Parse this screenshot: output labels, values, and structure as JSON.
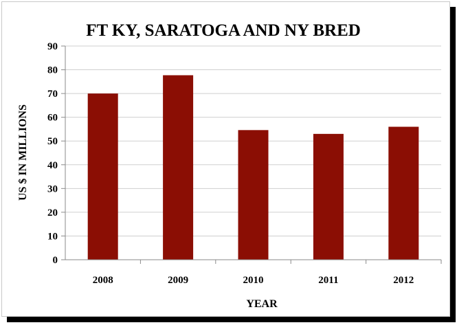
{
  "chart_data": {
    "type": "bar",
    "title": "FT KY, SARATOGA AND NY BRED",
    "xlabel": "YEAR",
    "ylabel": "US $ IN MILLIONS",
    "categories": [
      "2008",
      "2009",
      "2010",
      "2011",
      "2012"
    ],
    "values": [
      70,
      77.7,
      54.6,
      53,
      56
    ],
    "ylim": [
      0,
      90
    ],
    "yticks": [
      0,
      10,
      20,
      30,
      40,
      50,
      60,
      70,
      80,
      90
    ],
    "grid": true,
    "legend": "none",
    "bar_color": "#8b0e04",
    "grid_color": "#cfcfcf"
  }
}
